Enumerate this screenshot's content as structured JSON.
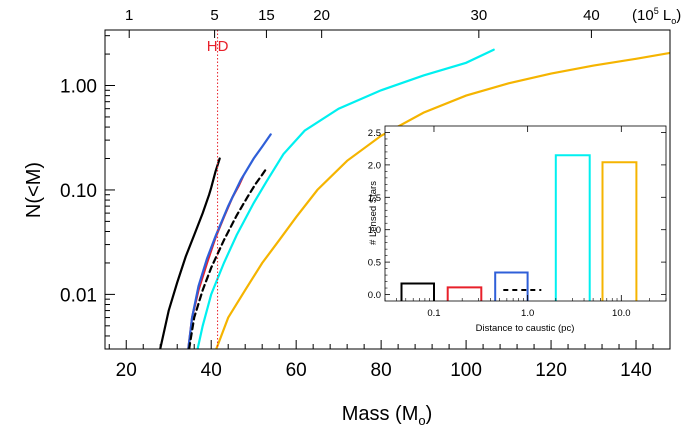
{
  "chart_data": [
    {
      "type": "line",
      "xscale": "linear",
      "yscale": "log",
      "xlabel": "Mass (M⊙)",
      "xlabel_main": "Mass (M",
      "xlabel_sub": "o",
      "xlabel_close": ")",
      "ylabel": "N(<M)",
      "xlim": [
        15,
        148
      ],
      "ylim": [
        0.003,
        3.4
      ],
      "x_ticks": [
        {
          "value": 20,
          "label": "20"
        },
        {
          "value": 40,
          "label": "40"
        },
        {
          "value": 60,
          "label": "60"
        },
        {
          "value": 80,
          "label": "80"
        },
        {
          "value": 100,
          "label": "100"
        },
        {
          "value": 120,
          "label": "120"
        },
        {
          "value": 140,
          "label": "140"
        }
      ],
      "y_ticks": [
        {
          "value": 0.01,
          "label": "0.01"
        },
        {
          "value": 0.1,
          "label": "0.10"
        },
        {
          "value": 1.0,
          "label": "1.00"
        }
      ],
      "top_axis": {
        "unit_label": "(10⁵ L⊙)",
        "unit_parts": {
          "open": "(10",
          "exp": "5",
          "mid": " L",
          "sub": "o",
          "close": ")"
        },
        "ticks": [
          {
            "mass": 20.7,
            "label": "1"
          },
          {
            "mass": 40.8,
            "label": "5"
          },
          {
            "mass": 53.0,
            "label": "15"
          },
          {
            "mass": 66.0,
            "label": "20"
          },
          {
            "mass": 103.0,
            "label": "30"
          },
          {
            "mass": 129.5,
            "label": "40"
          }
        ]
      },
      "annotation": {
        "text": "HD",
        "x": 41.5,
        "color": "#e8202a"
      },
      "series": [
        {
          "color": "#000000",
          "style": "solid",
          "points": [
            [
              28.0,
              0.003
            ],
            [
              30.0,
              0.007
            ],
            [
              32.0,
              0.013
            ],
            [
              34.0,
              0.023
            ],
            [
              36.0,
              0.037
            ],
            [
              38.0,
              0.06
            ],
            [
              39.5,
              0.09
            ],
            [
              40.0,
              0.105
            ],
            [
              41.0,
              0.15
            ],
            [
              42.0,
              0.2
            ]
          ]
        },
        {
          "color": "#e8202a",
          "style": "solid",
          "points": [
            [
              34.6,
              0.003
            ],
            [
              35.5,
              0.006
            ],
            [
              37.0,
              0.011
            ],
            [
              39.0,
              0.02
            ],
            [
              41.0,
              0.035
            ],
            [
              43.0,
              0.055
            ],
            [
              45.0,
              0.085
            ],
            [
              46.5,
              0.11
            ],
            [
              47.5,
              0.135
            ]
          ]
        },
        {
          "color": "#2f5fd8",
          "style": "solid",
          "points": [
            [
              34.6,
              0.003
            ],
            [
              35.5,
              0.006
            ],
            [
              37.0,
              0.012
            ],
            [
              39.0,
              0.022
            ],
            [
              41.0,
              0.036
            ],
            [
              44.0,
              0.07
            ],
            [
              47.0,
              0.125
            ],
            [
              50.0,
              0.2
            ],
            [
              52.0,
              0.26
            ],
            [
              54.0,
              0.34
            ]
          ]
        },
        {
          "color": "#000000",
          "style": "dashed",
          "points": [
            [
              34.8,
              0.003
            ],
            [
              36.0,
              0.006
            ],
            [
              38.0,
              0.011
            ],
            [
              40.0,
              0.018
            ],
            [
              43.0,
              0.033
            ],
            [
              46.0,
              0.057
            ],
            [
              48.5,
              0.085
            ],
            [
              50.5,
              0.115
            ],
            [
              52.0,
              0.14
            ],
            [
              53.0,
              0.16
            ]
          ]
        },
        {
          "color": "#00f0f0",
          "style": "solid",
          "points": [
            [
              36.8,
              0.003
            ],
            [
              38.0,
              0.005
            ],
            [
              40.0,
              0.01
            ],
            [
              43.0,
              0.02
            ],
            [
              46.0,
              0.037
            ],
            [
              50.0,
              0.075
            ],
            [
              53.0,
              0.12
            ],
            [
              57.0,
              0.22
            ],
            [
              62.0,
              0.37
            ],
            [
              70.0,
              0.6
            ],
            [
              80.0,
              0.9
            ],
            [
              90.0,
              1.25
            ],
            [
              100.0,
              1.65
            ],
            [
              106.5,
              2.2
            ]
          ]
        },
        {
          "color": "#f5b400",
          "style": "solid",
          "points": [
            [
              41.2,
              0.003
            ],
            [
              44.0,
              0.006
            ],
            [
              48.0,
              0.011
            ],
            [
              52.0,
              0.02
            ],
            [
              56.0,
              0.033
            ],
            [
              60.0,
              0.055
            ],
            [
              65.0,
              0.1
            ],
            [
              72.0,
              0.19
            ],
            [
              80.0,
              0.33
            ],
            [
              90.0,
              0.55
            ],
            [
              100.0,
              0.8
            ],
            [
              110.0,
              1.05
            ],
            [
              120.0,
              1.3
            ],
            [
              130.0,
              1.55
            ],
            [
              140.0,
              1.8
            ],
            [
              148.0,
              2.05
            ]
          ]
        }
      ]
    },
    {
      "type": "bar",
      "xscale": "log",
      "xlabel": "Distance to caustic (pc)",
      "ylabel": "# Lensed Stars",
      "xlim": [
        0.03,
        30
      ],
      "ylim": [
        -0.1,
        2.6
      ],
      "x_ticks": [
        {
          "value": 0.1,
          "label": "0.1"
        },
        {
          "value": 1.0,
          "label": "1.0"
        },
        {
          "value": 10.0,
          "label": "10.0"
        }
      ],
      "y_ticks": [
        {
          "value": 0.0,
          "label": "0.0"
        },
        {
          "value": 0.5,
          "label": "0.5"
        },
        {
          "value": 1.0,
          "label": "1.0"
        },
        {
          "value": 1.5,
          "label": "1.5"
        },
        {
          "value": 2.0,
          "label": "2.0"
        },
        {
          "value": 2.5,
          "label": "2.5"
        }
      ],
      "bars": [
        {
          "x0": 0.045,
          "x1": 0.1,
          "value": 0.17,
          "color": "#000000",
          "style": "solid"
        },
        {
          "x0": 0.14,
          "x1": 0.32,
          "value": 0.11,
          "color": "#e8202a",
          "style": "solid"
        },
        {
          "x0": 0.45,
          "x1": 1.0,
          "value": 0.34,
          "color": "#2f5fd8",
          "style": "solid"
        },
        {
          "x0": 0.55,
          "x1": 1.4,
          "value": 0.07,
          "color": "#000000",
          "style": "dashed"
        },
        {
          "x0": 2.0,
          "x1": 4.6,
          "value": 2.15,
          "color": "#00f0f0",
          "style": "solid"
        },
        {
          "x0": 6.3,
          "x1": 14.5,
          "value": 2.04,
          "color": "#f5b400",
          "style": "solid"
        }
      ]
    }
  ]
}
